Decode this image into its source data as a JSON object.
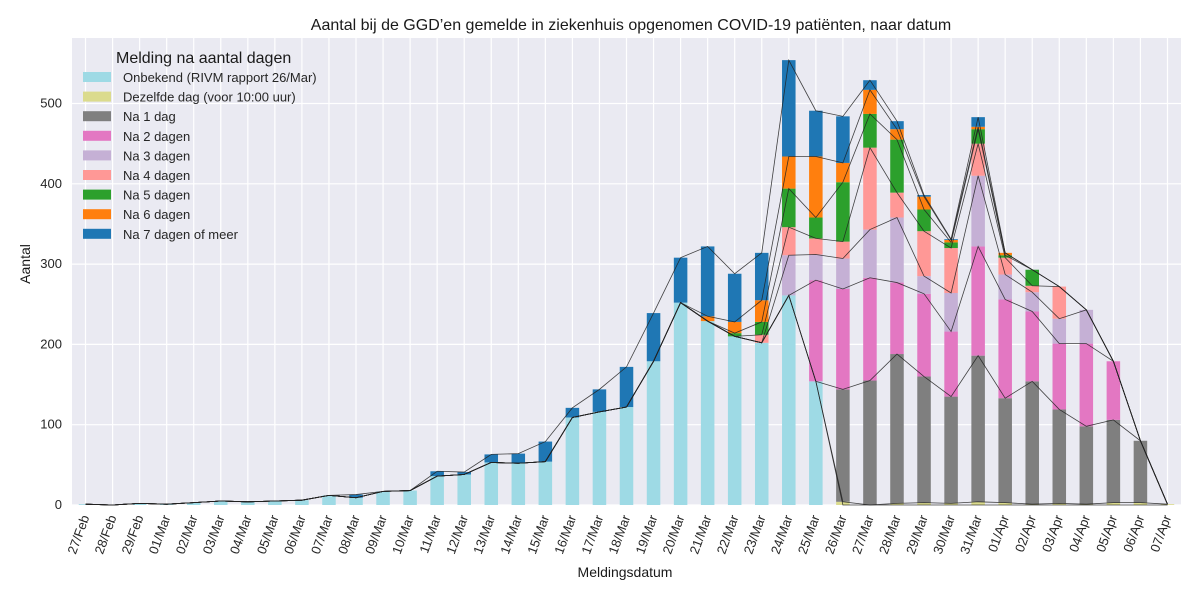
{
  "chart_data": {
    "type": "bar",
    "stacked": true,
    "title": "Aantal bij de GGD’en gemelde in ziekenhuis opgenomen COVID-19 patiënten, naar datum",
    "xlabel": "Meldingsdatum",
    "ylabel": "Aantal",
    "ylim": [
      0,
      560
    ],
    "yticks": [
      0,
      100,
      200,
      300,
      400,
      500
    ],
    "grid": true,
    "legend": {
      "title": "Melding na aantal dagen",
      "placement": "top-left"
    },
    "categories": [
      "27/Feb",
      "28/Feb",
      "29/Feb",
      "01/Mar",
      "02/Mar",
      "03/Mar",
      "04/Mar",
      "05/Mar",
      "06/Mar",
      "07/Mar",
      "08/Mar",
      "09/Mar",
      "10/Mar",
      "11/Mar",
      "12/Mar",
      "13/Mar",
      "14/Mar",
      "15/Mar",
      "16/Mar",
      "17/Mar",
      "18/Mar",
      "19/Mar",
      "20/Mar",
      "21/Mar",
      "22/Mar",
      "23/Mar",
      "24/Mar",
      "25/Mar",
      "26/Mar",
      "27/Mar",
      "28/Mar",
      "29/Mar",
      "30/Mar",
      "31/Mar",
      "01/Apr",
      "02/Apr",
      "03/Apr",
      "04/Apr",
      "05/Apr",
      "06/Apr",
      "07/Apr"
    ],
    "series": [
      {
        "name": "Onbekend (RIVM rapport 26/Mar)",
        "color": "#9edae5",
        "values": [
          1,
          0,
          2,
          1,
          3,
          5,
          4,
          5,
          6,
          12,
          9,
          17,
          18,
          36,
          38,
          53,
          52,
          54,
          109,
          116,
          122,
          179,
          252,
          229,
          210,
          202,
          261,
          154,
          0,
          0,
          0,
          0,
          0,
          0,
          0,
          0,
          0,
          0,
          0,
          0,
          0
        ]
      },
      {
        "name": "Dezelfde dag (voor 10:00 uur)",
        "color": "#dbdb8d",
        "values": [
          0,
          0,
          0,
          0,
          0,
          0,
          0,
          0,
          0,
          0,
          0,
          0,
          0,
          0,
          0,
          0,
          0,
          0,
          0,
          0,
          0,
          0,
          0,
          0,
          0,
          0,
          0,
          0,
          4,
          0,
          2,
          3,
          2,
          4,
          3,
          1,
          2,
          1,
          3,
          3,
          1
        ]
      },
      {
        "name": "Na 1 dag",
        "color": "#7f7f7f",
        "values": [
          0,
          0,
          0,
          0,
          0,
          0,
          0,
          0,
          0,
          0,
          0,
          0,
          0,
          0,
          0,
          0,
          0,
          0,
          0,
          0,
          0,
          0,
          0,
          0,
          0,
          0,
          0,
          0,
          140,
          155,
          186,
          157,
          133,
          182,
          130,
          153,
          117,
          97,
          103,
          77,
          0
        ]
      },
      {
        "name": "Na 2 dagen",
        "color": "#e377c2",
        "values": [
          0,
          0,
          0,
          0,
          0,
          0,
          0,
          0,
          0,
          0,
          0,
          0,
          0,
          0,
          0,
          0,
          0,
          0,
          0,
          0,
          0,
          0,
          0,
          0,
          0,
          0,
          0,
          126,
          125,
          128,
          89,
          103,
          81,
          136,
          123,
          87,
          82,
          103,
          73,
          0,
          0
        ]
      },
      {
        "name": "Na 3 dagen",
        "color": "#c5b0d5",
        "values": [
          0,
          0,
          0,
          0,
          0,
          0,
          0,
          0,
          0,
          0,
          0,
          0,
          0,
          0,
          0,
          0,
          0,
          0,
          0,
          0,
          0,
          0,
          0,
          0,
          0,
          0,
          50,
          32,
          38,
          60,
          81,
          22,
          48,
          88,
          31,
          24,
          31,
          42,
          0,
          0,
          0
        ]
      },
      {
        "name": "Na 4 dagen",
        "color": "#ff9896",
        "values": [
          0,
          0,
          0,
          0,
          0,
          0,
          0,
          0,
          0,
          0,
          0,
          0,
          0,
          0,
          0,
          0,
          0,
          0,
          0,
          0,
          0,
          0,
          0,
          0,
          0,
          10,
          35,
          20,
          21,
          102,
          31,
          56,
          56,
          40,
          21,
          8,
          40,
          0,
          0,
          0,
          0
        ]
      },
      {
        "name": "Na 5 dagen",
        "color": "#2ca02c",
        "values": [
          0,
          0,
          0,
          0,
          0,
          0,
          0,
          0,
          0,
          0,
          0,
          0,
          0,
          0,
          0,
          0,
          0,
          0,
          0,
          0,
          0,
          0,
          0,
          0,
          4,
          16,
          48,
          26,
          74,
          42,
          66,
          27,
          7,
          18,
          3,
          20,
          0,
          0,
          0,
          0,
          0
        ]
      },
      {
        "name": "Na 6 dagen",
        "color": "#ff7f0e",
        "values": [
          0,
          0,
          0,
          0,
          0,
          0,
          0,
          0,
          0,
          0,
          0,
          0,
          0,
          0,
          0,
          0,
          0,
          0,
          0,
          0,
          0,
          0,
          0,
          6,
          14,
          27,
          40,
          76,
          24,
          30,
          13,
          16,
          3,
          3,
          3,
          0,
          0,
          0,
          0,
          0,
          0
        ]
      },
      {
        "name": "Na 7 dagen of meer",
        "color": "#1f77b4",
        "values": [
          0,
          0,
          0,
          0,
          0,
          0,
          0,
          0,
          0,
          0,
          4,
          0,
          0,
          6,
          3,
          10,
          12,
          25,
          12,
          28,
          50,
          60,
          56,
          87,
          60,
          59,
          120,
          57,
          58,
          12,
          10,
          2,
          1,
          12,
          0,
          0,
          0,
          0,
          0,
          0,
          0
        ]
      }
    ]
  }
}
